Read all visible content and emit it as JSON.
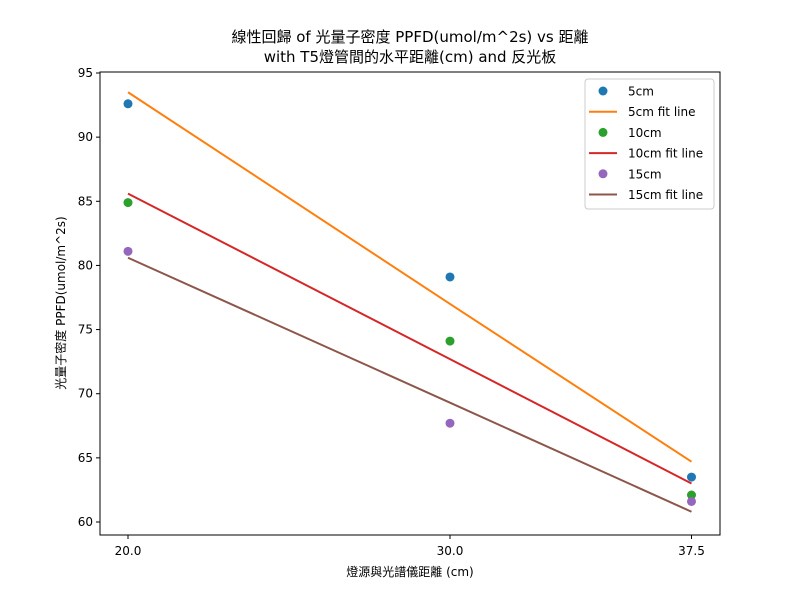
{
  "chart_data": {
    "type": "scatter",
    "title": "線性回歸 of 光量子密度 PPFD(umol/m^2s) vs 距離\nwith T5燈管間的水平距離(cm) and 反光板",
    "title_lines": [
      "線性回歸 of 光量子密度 PPFD(umol/m^2s) vs 距離",
      "with T5燈管間的水平距離(cm) and 反光板"
    ],
    "xlabel": "燈源與光譜儀距離 (cm)",
    "ylabel": "光量子密度 PPFD(umol/m^2s)",
    "x": [
      20.0,
      30.0,
      37.5
    ],
    "x_ticks": [
      "20.0",
      "30.0",
      "37.5"
    ],
    "y_ticks": [
      "60",
      "65",
      "70",
      "75",
      "80",
      "85",
      "90",
      "95"
    ],
    "xlim": [
      19.1,
      38.4
    ],
    "ylim": [
      59.3,
      95.1
    ],
    "grid": false,
    "legend_position": "upper right",
    "series": [
      {
        "name": "5cm",
        "kind": "scatter",
        "color": "#1f77b4",
        "values": [
          92.6,
          79.1,
          63.5
        ]
      },
      {
        "name": "5cm fit line",
        "kind": "line",
        "color": "#ff7f0e",
        "values": [
          93.5,
          77.0,
          64.7
        ]
      },
      {
        "name": "10cm",
        "kind": "scatter",
        "color": "#2ca02c",
        "values": [
          84.9,
          74.1,
          62.1
        ]
      },
      {
        "name": "10cm fit line",
        "kind": "line",
        "color": "#d62728",
        "values": [
          85.6,
          72.7,
          63.0
        ]
      },
      {
        "name": "15cm",
        "kind": "scatter",
        "color": "#9467bd",
        "values": [
          81.1,
          67.7,
          61.6
        ]
      },
      {
        "name": "15cm fit line",
        "kind": "line",
        "color": "#8c564b",
        "values": [
          80.6,
          69.3,
          60.8
        ]
      }
    ]
  }
}
